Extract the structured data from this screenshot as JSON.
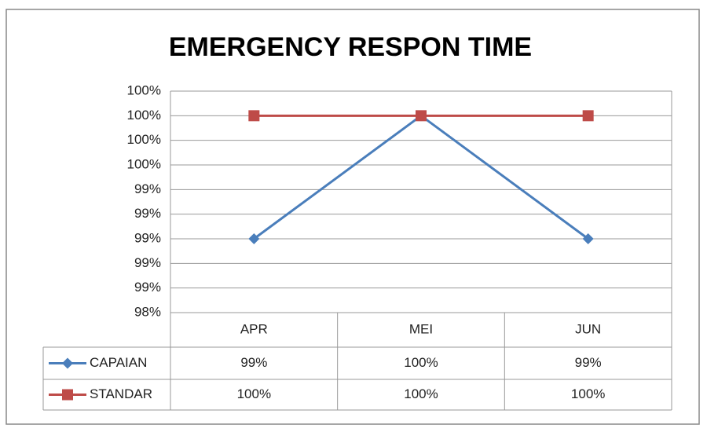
{
  "chart_data": {
    "type": "line",
    "title": "EMERGENCY RESPON TIME",
    "categories": [
      "APR",
      "MEI",
      "JUN"
    ],
    "series": [
      {
        "name": "CAPAIAN",
        "color": "#4a7ebb",
        "marker": "diamond",
        "values": [
          99,
          100,
          99
        ],
        "value_labels": [
          "99%",
          "100%",
          "99%"
        ]
      },
      {
        "name": "STANDAR",
        "color": "#be4b48",
        "marker": "square",
        "values": [
          100,
          100,
          100
        ],
        "value_labels": [
          "100%",
          "100%",
          "100%"
        ]
      }
    ],
    "ylim": [
      98.4,
      100.2
    ],
    "yticks": [
      {
        "value": 98.4,
        "label": "98%"
      },
      {
        "value": 98.6,
        "label": "99%"
      },
      {
        "value": 98.8,
        "label": "99%"
      },
      {
        "value": 99.0,
        "label": "99%"
      },
      {
        "value": 99.2,
        "label": "99%"
      },
      {
        "value": 99.4,
        "label": "99%"
      },
      {
        "value": 99.6,
        "label": "100%"
      },
      {
        "value": 99.8,
        "label": "100%"
      },
      {
        "value": 100.0,
        "label": "100%"
      },
      {
        "value": 100.2,
        "label": "100%"
      }
    ],
    "grid": true
  }
}
